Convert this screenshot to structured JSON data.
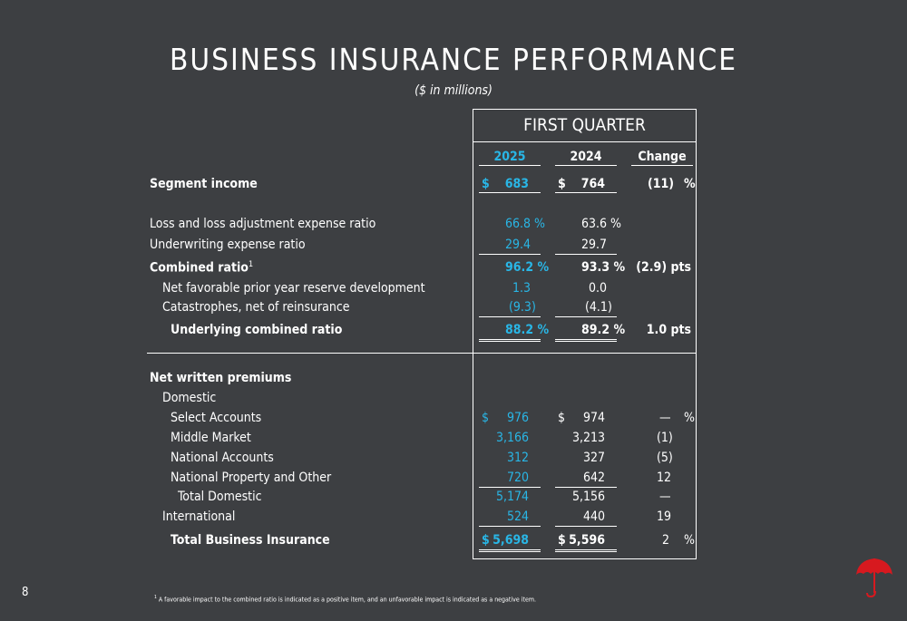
{
  "title": "BUSINESS INSURANCE PERFORMANCE",
  "subtitle": "($ in millions)",
  "quarter_header": "FIRST QUARTER",
  "columns": {
    "current": "2025",
    "prior": "2024",
    "change": "Change"
  },
  "rows": [
    {
      "label": "Segment income",
      "bold": true,
      "cur_dollar": "$",
      "cur": "683",
      "pri_dollar": "$",
      "pri": "764",
      "chg": "(11)",
      "chg_unit": "%"
    },
    {
      "label": "Loss and loss adjustment expense ratio",
      "cur": "66.8 %",
      "pri": "63.6 %"
    },
    {
      "label": "Underwriting expense ratio",
      "cur": "29.4",
      "pri": "29.7"
    },
    {
      "label": "Combined ratio",
      "sup": "1",
      "bold": true,
      "cur": "96.2 %",
      "pri": "93.3 %",
      "chg": "(2.9) pts"
    },
    {
      "label": "Net favorable prior year reserve development",
      "cur": "1.3",
      "pri": "0.0"
    },
    {
      "label": "Catastrophes, net of reinsurance",
      "cur": "(9.3)",
      "pri": "(4.1)"
    },
    {
      "label": "Underlying combined ratio",
      "bold": true,
      "cur": "88.2 %",
      "pri": "89.2 %",
      "chg": "1.0  pts"
    },
    {
      "label": "Net written premiums",
      "bold": true
    },
    {
      "label": "Domestic"
    },
    {
      "label": "Select Accounts",
      "cur_dollar": "$",
      "cur": "976",
      "pri_dollar": "$",
      "pri": "974",
      "chg": "—",
      "chg_unit": "%"
    },
    {
      "label": "Middle Market",
      "cur": "3,166",
      "pri": "3,213",
      "chg": "(1)"
    },
    {
      "label": "National Accounts",
      "cur": "312",
      "pri": "327",
      "chg": "(5)"
    },
    {
      "label": "National Property and Other",
      "cur": "720",
      "pri": "642",
      "chg": "12"
    },
    {
      "label": "Total Domestic",
      "cur": "5,174",
      "pri": "5,156",
      "chg": "—"
    },
    {
      "label": "International",
      "cur": "524",
      "pri": "440",
      "chg": "19"
    },
    {
      "label": "Total Business Insurance",
      "bold": true,
      "cur_dollar": "$",
      "cur": "5,698",
      "pri_dollar": "$",
      "pri": "5,596",
      "chg": "2",
      "chg_unit": "%"
    }
  ],
  "page_number": "8",
  "footnote": {
    "mark": "1",
    "text": "A favorable impact to the combined ratio is indicated as a positive item, and an unfavorable impact is indicated as a negative item."
  },
  "logo_icon": "red-umbrella-icon",
  "colors": {
    "background": "#3d3f42",
    "current_year": "#29b6e6",
    "text": "#ffffff",
    "logo": "#d7191f"
  }
}
